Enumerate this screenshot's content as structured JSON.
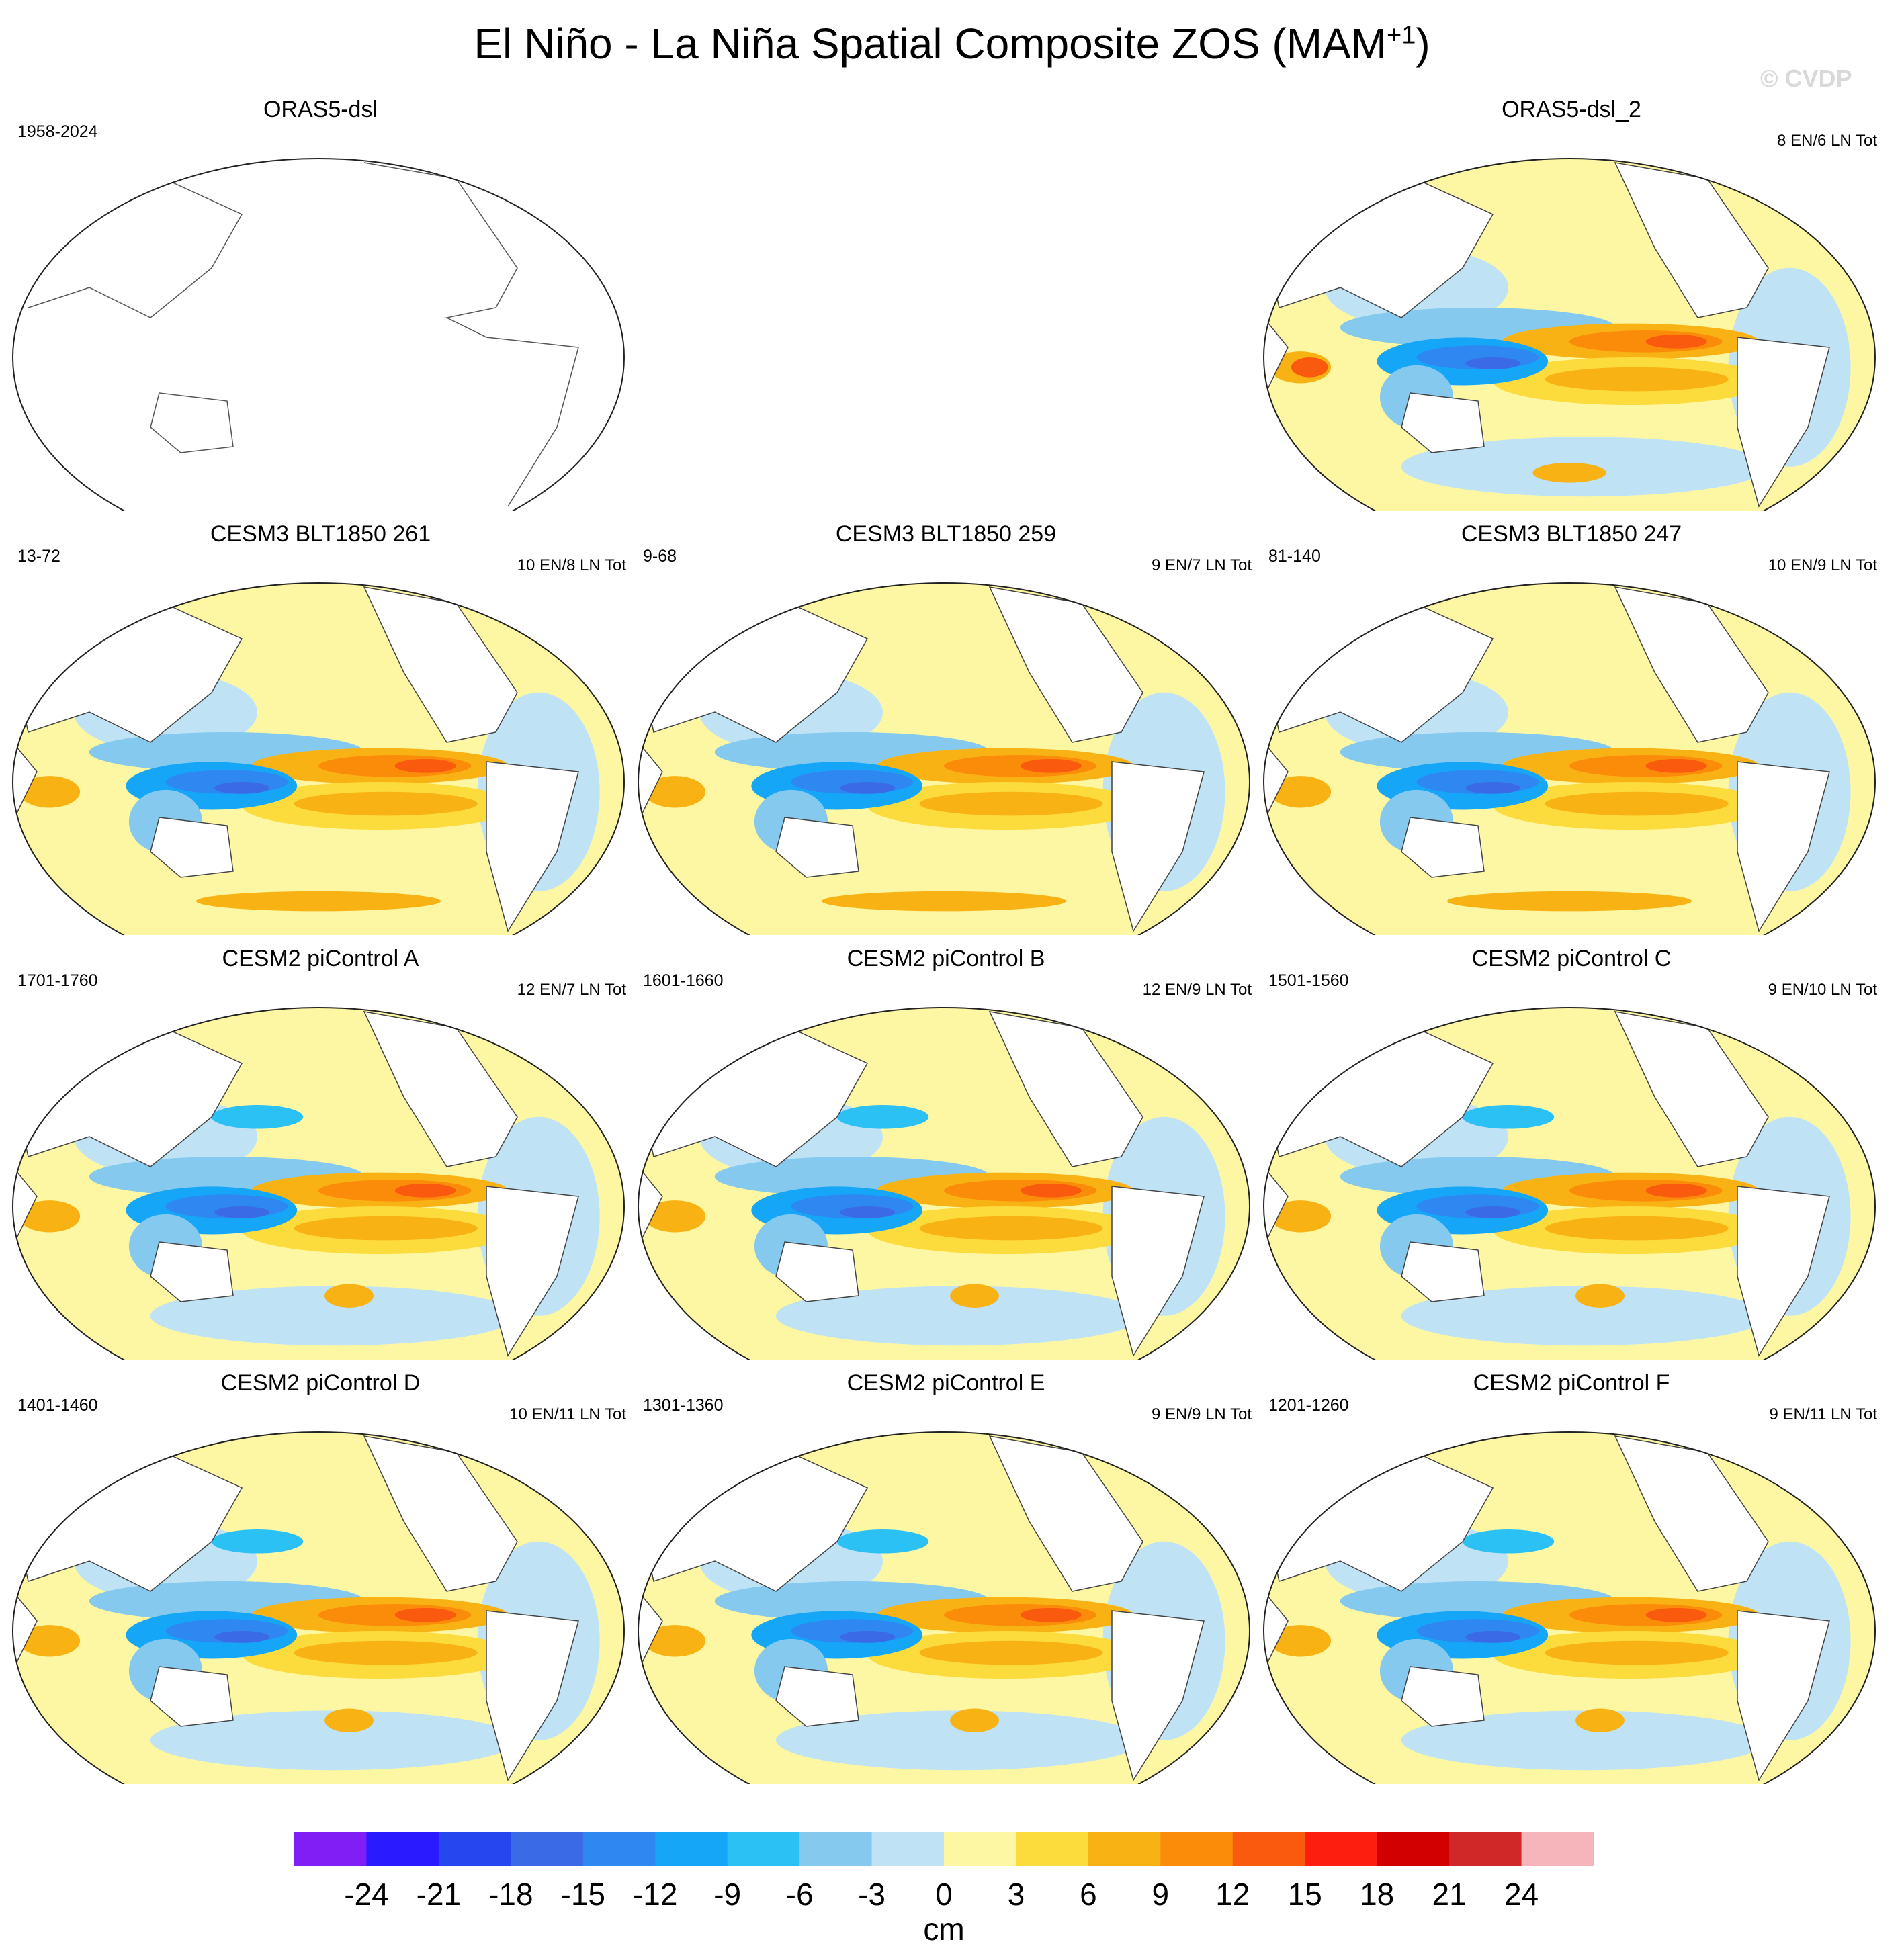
{
  "figure": {
    "title_main": "El Niño - La Niña Spatial Composite ZOS (MAM",
    "title_sup": "+1",
    "title_end": ")",
    "watermark": "© CVDP"
  },
  "chart_data": {
    "type": "heatmap",
    "projection": "Robinson (Pacific-centered)",
    "variable": "ZOS",
    "season": "MAM+1",
    "units": "cm",
    "colorbar": {
      "levels": [
        -24,
        -21,
        -18,
        -15,
        -12,
        -9,
        -6,
        -3,
        0,
        3,
        6,
        9,
        12,
        15,
        18,
        21,
        24
      ],
      "tick_labels": [
        "-24",
        "-21",
        "-18",
        "-15",
        "-12",
        "-9",
        "-6",
        "-3",
        "0",
        "3",
        "6",
        "9",
        "12",
        "15",
        "18",
        "21",
        "24"
      ],
      "colors": [
        "#7f1ff5",
        "#2a1aff",
        "#2646f0",
        "#3a6ae6",
        "#2f87f2",
        "#15a6f7",
        "#2cc1f5",
        "#86c9ef",
        "#bfe3f5",
        "#fdf7a3",
        "#fcdb3c",
        "#f9b214",
        "#fb8c09",
        "#f95a0e",
        "#fd1e0f",
        "#d30000",
        "#d02729",
        "#f6b5bb"
      ],
      "label": "cm"
    },
    "panels": [
      {
        "id": "orasl5-dsl",
        "title": "ORAS5-dsl",
        "period": "1958-2024",
        "counts": "",
        "pattern": "empty"
      },
      {
        "id": "orasl5-dsl-2",
        "title": "ORAS5-dsl_2",
        "period": "",
        "counts": "8 EN/6 LN Tot",
        "pattern": "obs"
      },
      {
        "id": "cesm3-261",
        "title": "CESM3 BLT1850 261",
        "period": "13-72",
        "counts": "10 EN/8 LN Tot",
        "pattern": "cesm3"
      },
      {
        "id": "cesm3-259",
        "title": "CESM3 BLT1850 259",
        "period": "9-68",
        "counts": "9 EN/7 LN Tot",
        "pattern": "cesm3"
      },
      {
        "id": "cesm3-247",
        "title": "CESM3 BLT1850 247",
        "period": "81-140",
        "counts": "10 EN/9 LN Tot",
        "pattern": "cesm3"
      },
      {
        "id": "cesm2-a",
        "title": "CESM2 piControl A",
        "period": "1701-1760",
        "counts": "12 EN/7 LN Tot",
        "pattern": "cesm2"
      },
      {
        "id": "cesm2-b",
        "title": "CESM2 piControl B",
        "period": "1601-1660",
        "counts": "12 EN/9 LN Tot",
        "pattern": "cesm2"
      },
      {
        "id": "cesm2-c",
        "title": "CESM2 piControl C",
        "period": "1501-1560",
        "counts": "9 EN/10 LN Tot",
        "pattern": "cesm2"
      },
      {
        "id": "cesm2-d",
        "title": "CESM2 piControl D",
        "period": "1401-1460",
        "counts": "10 EN/11 LN Tot",
        "pattern": "cesm2"
      },
      {
        "id": "cesm2-e",
        "title": "CESM2 piControl E",
        "period": "1301-1360",
        "counts": "9 EN/9 LN Tot",
        "pattern": "cesm2"
      },
      {
        "id": "cesm2-f",
        "title": "CESM2 piControl F",
        "period": "1201-1260",
        "counts": "9 EN/11 LN Tot",
        "pattern": "cesm2"
      }
    ]
  }
}
